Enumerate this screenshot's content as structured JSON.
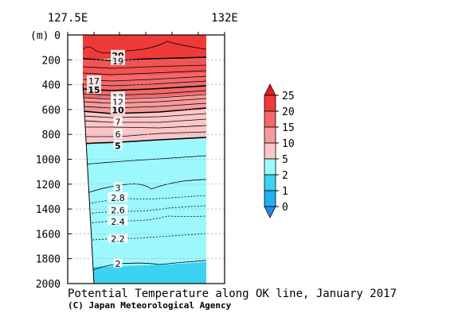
{
  "chart_data": {
    "type": "contour-section",
    "title": "Potential Temperature along OK line, January 2017",
    "credit": "(C) Japan Meteorological Agency",
    "x_tick_labels": [
      "127.5E",
      "132E"
    ],
    "y_unit_label": "(m)",
    "y_ticks": [
      0,
      200,
      400,
      600,
      800,
      1000,
      1200,
      1400,
      1600,
      1800,
      2000
    ],
    "ylim": [
      2000,
      0
    ],
    "colorbar": {
      "labels": [
        "0",
        "1",
        "2",
        "5",
        "10",
        "15",
        "20",
        "25"
      ],
      "bands": [
        {
          "from": -1,
          "to": 0,
          "color": "#2b86e6"
        },
        {
          "from": 0,
          "to": 1,
          "color": "#1eb0f0"
        },
        {
          "from": 1,
          "to": 2,
          "color": "#3cd2f2"
        },
        {
          "from": 2,
          "to": 5,
          "color": "#9cf8fc"
        },
        {
          "from": 5,
          "to": 10,
          "color": "#fcc6c8"
        },
        {
          "from": 10,
          "to": 15,
          "color": "#f89a9c"
        },
        {
          "from": 15,
          "to": 20,
          "color": "#f4686a"
        },
        {
          "from": 20,
          "to": 25,
          "color": "#ef3a3a"
        },
        {
          "from": 25,
          "to": 30,
          "color": "#e31a1c"
        }
      ]
    },
    "contour_labels": [
      {
        "text": "20",
        "value": 20,
        "depth": 165
      },
      {
        "text": "19",
        "value": 19,
        "depth": 210
      },
      {
        "text": "17",
        "value": 17,
        "depth": 370
      },
      {
        "text": "15",
        "value": 15,
        "depth": 440
      },
      {
        "text": "13",
        "value": 13,
        "depth": 500
      },
      {
        "text": "12",
        "value": 12,
        "depth": 540
      },
      {
        "text": "10",
        "value": 10,
        "depth": 605
      },
      {
        "text": "7",
        "value": 7,
        "depth": 700
      },
      {
        "text": "6",
        "value": 6,
        "depth": 800
      },
      {
        "text": "5",
        "value": 5,
        "depth": 890
      },
      {
        "text": "3",
        "value": 3,
        "depth": 1230
      },
      {
        "text": "2.8",
        "value": 2.8,
        "depth": 1310
      },
      {
        "text": "2.6",
        "value": 2.6,
        "depth": 1410
      },
      {
        "text": "2.4",
        "value": 2.4,
        "depth": 1500
      },
      {
        "text": "2.2",
        "value": 2.2,
        "depth": 1640
      },
      {
        "text": "2",
        "value": 2,
        "depth": 1840
      }
    ]
  }
}
